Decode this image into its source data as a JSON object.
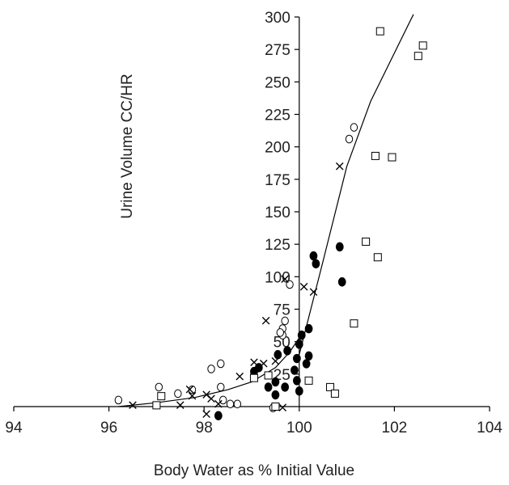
{
  "chart_data": {
    "type": "scatter",
    "title": "",
    "xlabel": "Body Water as % Initial Value",
    "ylabel": "Urine Volume  CC/HR",
    "xlim": [
      94,
      104
    ],
    "ylim": [
      0,
      300
    ],
    "x_ticks": [
      94,
      96,
      98,
      100,
      102,
      104
    ],
    "y_ticks": [
      25,
      50,
      75,
      100,
      125,
      150,
      175,
      200,
      225,
      250,
      275,
      300
    ],
    "x_tick_labels": [
      "94",
      "96",
      "98",
      "100",
      "102",
      "104"
    ],
    "y_tick_labels": [
      "25",
      "50",
      "75",
      "100",
      "125",
      "150",
      "175",
      "200",
      "225",
      "250",
      "275",
      "300"
    ],
    "legend": "none",
    "grid": false,
    "series": [
      {
        "marker": "open-circle",
        "points": [
          [
            96.2,
            5
          ],
          [
            97.05,
            15
          ],
          [
            97.45,
            10
          ],
          [
            97.75,
            13
          ],
          [
            98.15,
            29
          ],
          [
            98.35,
            15
          ],
          [
            98.4,
            5
          ],
          [
            98.55,
            2
          ],
          [
            98.7,
            2
          ],
          [
            98.35,
            33
          ],
          [
            99.7,
            66
          ],
          [
            99.65,
            60
          ],
          [
            99.8,
            94
          ],
          [
            99.45,
            -1
          ],
          [
            99.65,
            55
          ],
          [
            101.05,
            206
          ],
          [
            101.15,
            215
          ],
          [
            99.6,
            57
          ]
        ]
      },
      {
        "marker": "filled-circle",
        "points": [
          [
            98.3,
            -7
          ],
          [
            99.05,
            27
          ],
          [
            99.15,
            30
          ],
          [
            99.35,
            15
          ],
          [
            99.5,
            9
          ],
          [
            99.5,
            19
          ],
          [
            99.55,
            40
          ],
          [
            99.7,
            15
          ],
          [
            99.75,
            43
          ],
          [
            99.9,
            28
          ],
          [
            99.95,
            37
          ],
          [
            100.0,
            48
          ],
          [
            100.05,
            55
          ],
          [
            100.0,
            12
          ],
          [
            100.15,
            33
          ],
          [
            100.2,
            39
          ],
          [
            100.2,
            60
          ],
          [
            100.3,
            116
          ],
          [
            100.35,
            110
          ],
          [
            100.85,
            123
          ],
          [
            100.9,
            96
          ],
          [
            99.95,
            20
          ]
        ]
      },
      {
        "marker": "open-square",
        "points": [
          [
            97.0,
            1
          ],
          [
            97.1,
            8
          ],
          [
            99.05,
            22
          ],
          [
            99.35,
            24
          ],
          [
            99.5,
            0
          ],
          [
            100.2,
            20
          ],
          [
            100.65,
            15
          ],
          [
            100.75,
            10
          ],
          [
            101.15,
            64
          ],
          [
            101.4,
            127
          ],
          [
            101.6,
            193
          ],
          [
            101.65,
            115
          ],
          [
            101.95,
            192
          ],
          [
            101.7,
            289
          ],
          [
            102.5,
            270
          ],
          [
            102.6,
            278
          ]
        ]
      },
      {
        "marker": "x",
        "points": [
          [
            96.5,
            1
          ],
          [
            97.5,
            1
          ],
          [
            97.7,
            13
          ],
          [
            97.75,
            8
          ],
          [
            98.05,
            -6
          ],
          [
            98.05,
            9
          ],
          [
            98.15,
            6
          ],
          [
            98.3,
            2
          ],
          [
            98.75,
            23
          ],
          [
            99.05,
            34
          ],
          [
            99.25,
            33
          ],
          [
            99.3,
            66
          ],
          [
            99.5,
            35
          ],
          [
            99.65,
            -1
          ],
          [
            99.7,
            98
          ],
          [
            100.1,
            92
          ],
          [
            100.3,
            88
          ],
          [
            100.85,
            185
          ]
        ]
      }
    ],
    "fit_lines": [
      {
        "points": [
          [
            96.2,
            0
          ],
          [
            97.0,
            3
          ],
          [
            97.8,
            7
          ],
          [
            98.5,
            13
          ],
          [
            99.0,
            19
          ],
          [
            99.5,
            30
          ],
          [
            99.8,
            42
          ],
          [
            100.0,
            53
          ]
        ]
      },
      {
        "points": [
          [
            100.0,
            40
          ],
          [
            100.5,
            112
          ],
          [
            101.0,
            185
          ],
          [
            101.5,
            235
          ],
          [
            102.4,
            302
          ]
        ]
      }
    ]
  }
}
